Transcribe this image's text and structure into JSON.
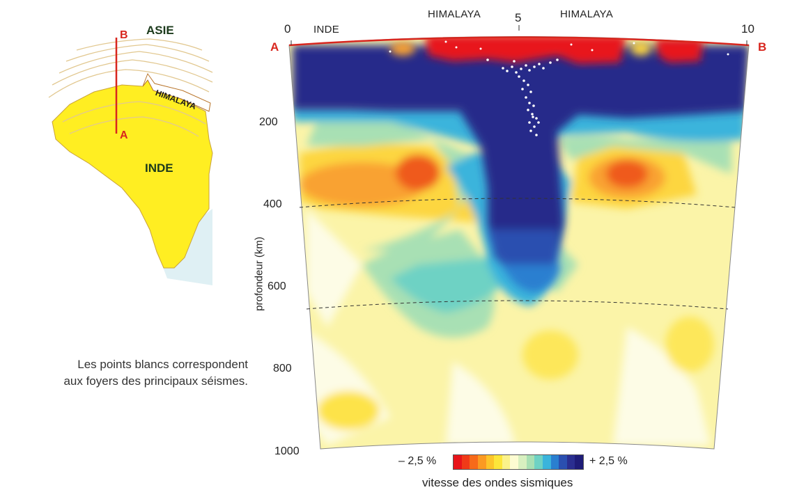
{
  "map": {
    "asia_label": "ASIE",
    "india_label": "INDE",
    "himalaya_label": "HIMALAYA",
    "point_a": "A",
    "point_b": "B"
  },
  "caption": {
    "line1": "Les points blancs correspondent",
    "line2": "aux foyers des principaux séismes."
  },
  "section": {
    "top_labels": {
      "inde": "INDE",
      "himalaya_left": "HIMALAYA",
      "himalaya_right": "HIMALAYA"
    },
    "x_ticks": [
      "0",
      "5",
      "10"
    ],
    "end_a": "A",
    "end_b": "B",
    "y_ticks": [
      "200",
      "400",
      "600",
      "800",
      "1000"
    ],
    "y_label": "profondeur (km)"
  },
  "legend": {
    "min_label": "– 2,5 %",
    "max_label": "+ 2,5 %",
    "title": "vitesse des ondes sismiques",
    "colors": [
      "#e8141a",
      "#f03a18",
      "#f76a1a",
      "#fb9a22",
      "#fdc52a",
      "#fde63a",
      "#fbf28a",
      "#fdfcd2",
      "#d8f0c0",
      "#a8e0b4",
      "#6ed2c4",
      "#3ab4dc",
      "#2a7fd0",
      "#2a4fb0",
      "#2a2e90",
      "#1e1c78"
    ]
  },
  "chart_data": {
    "type": "heatmap",
    "title": "",
    "xlabel": "",
    "ylabel": "profondeur (km)",
    "x_ticks": [
      0,
      5,
      10
    ],
    "y_ticks": [
      200,
      400,
      600,
      800,
      1000
    ],
    "ylim": [
      0,
      1000
    ],
    "xlim": [
      0,
      10
    ],
    "reference_depths_km": [
      400,
      670
    ],
    "scale_range_percent": [
      -2.5,
      2.5
    ],
    "colorbar_label": "vitesse des ondes sismiques"
  }
}
